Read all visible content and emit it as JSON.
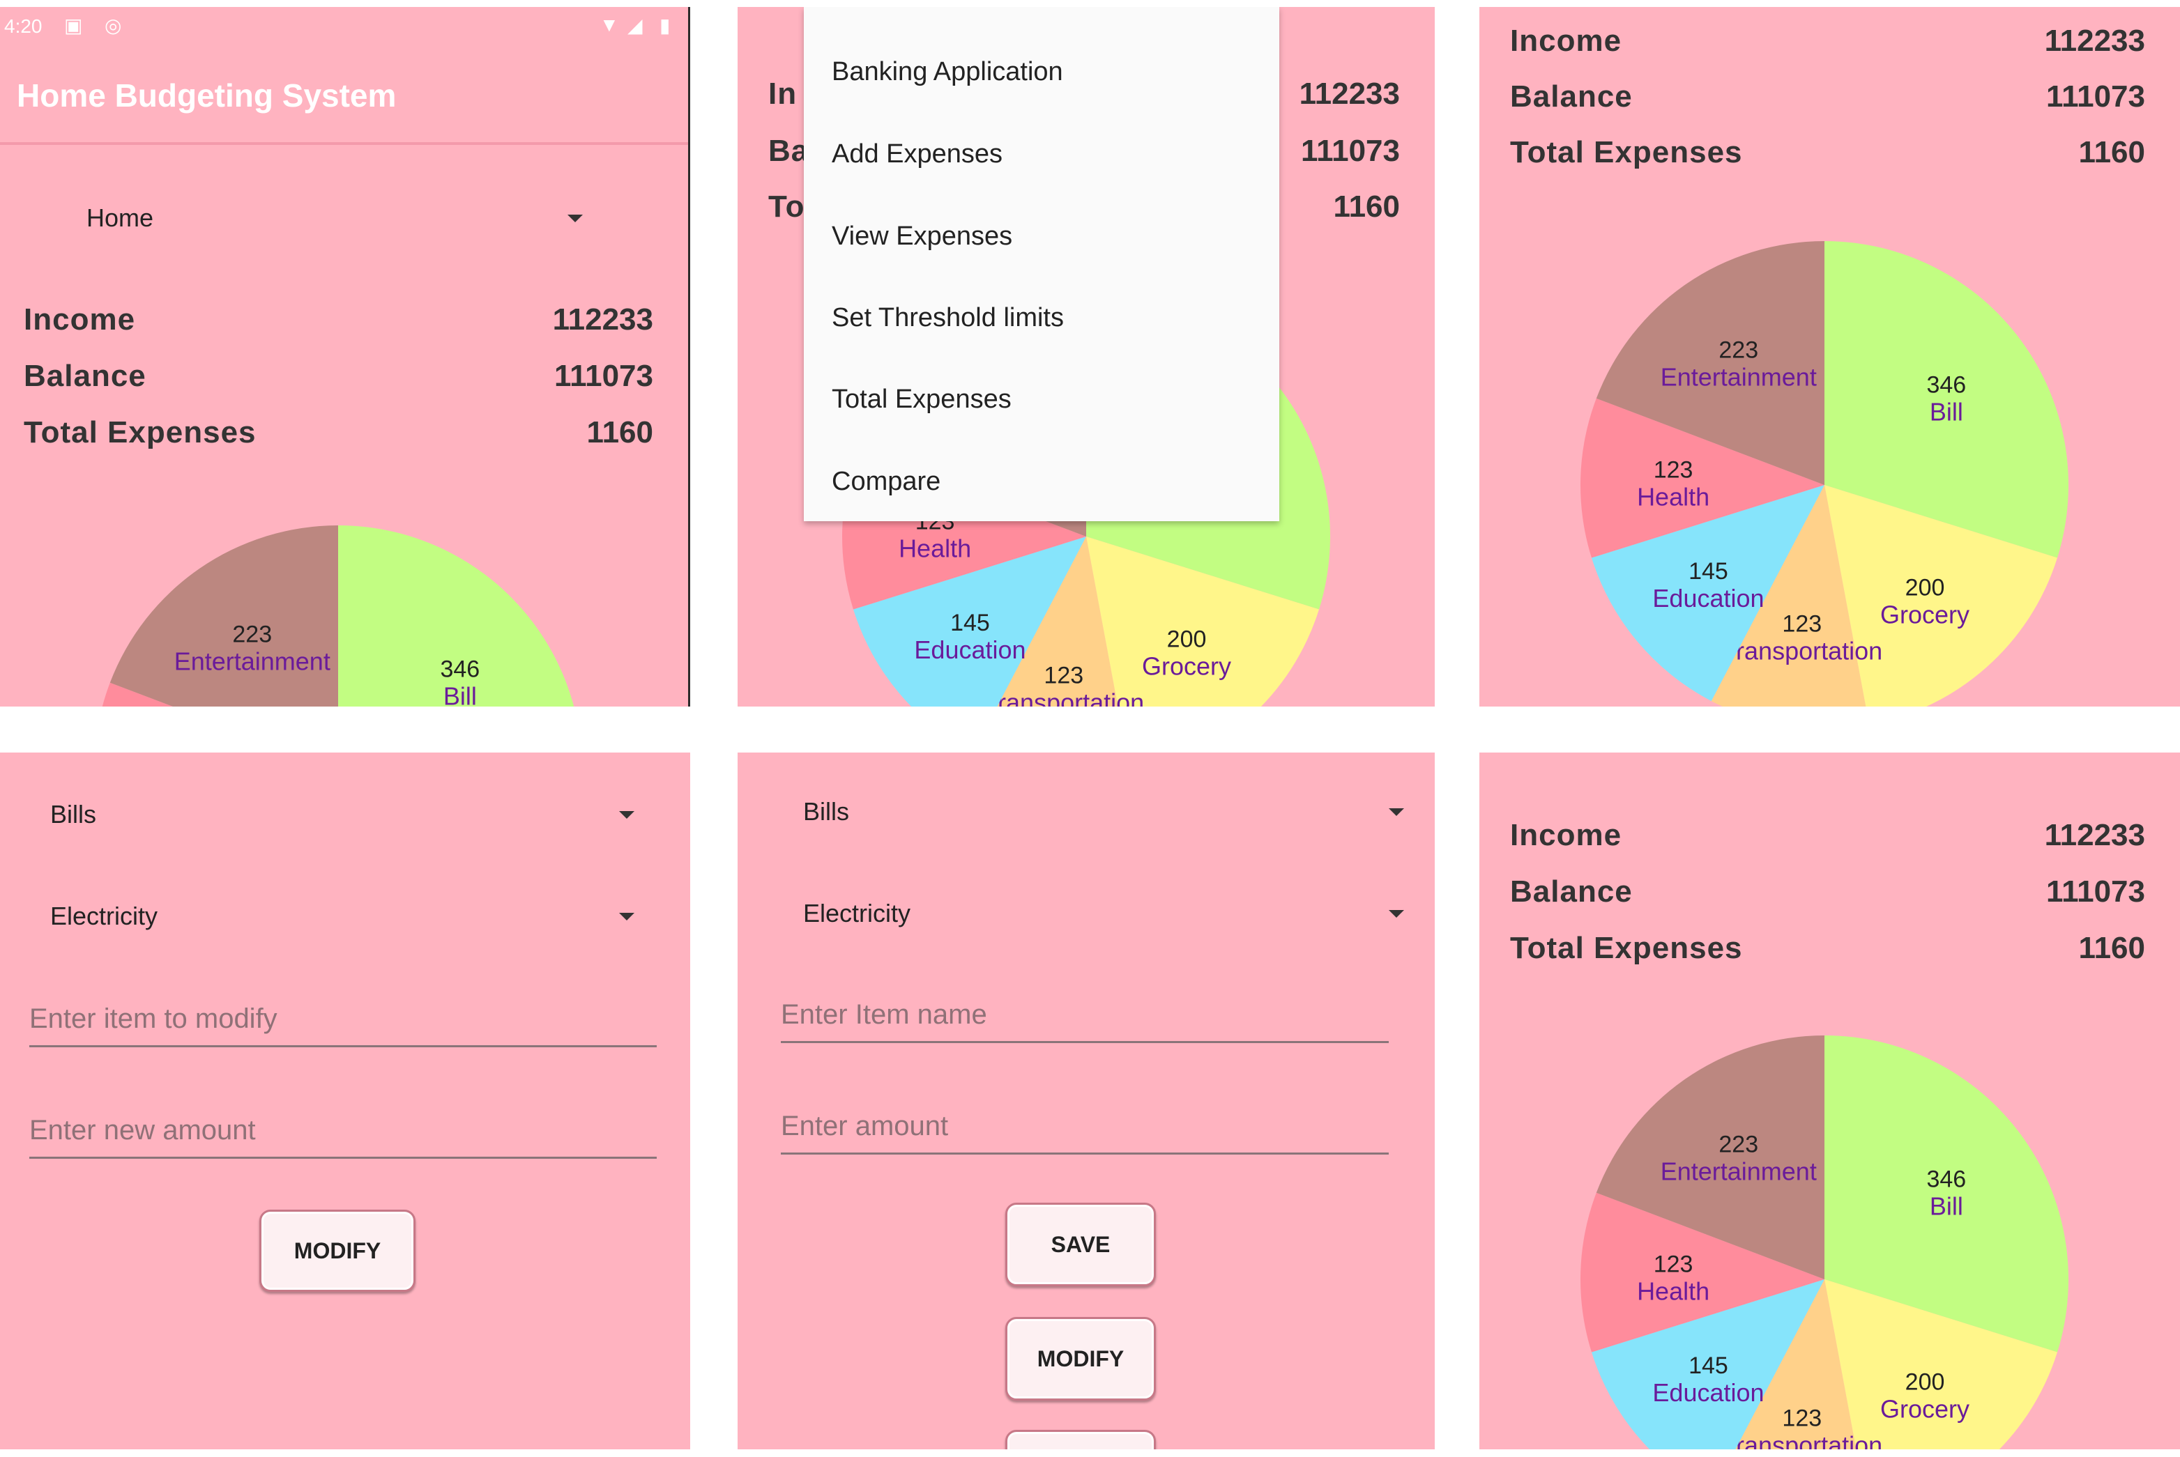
{
  "status_bar": {
    "time": "4:20"
  },
  "app_title": "Home Budgeting System",
  "category_spinner": "Home",
  "stats": {
    "income_label": "Income",
    "income_value": "112233",
    "balance_label": "Balance",
    "balance_value": "111073",
    "total_label": "Total Expenses",
    "total_value": "1160"
  },
  "menu": {
    "items": [
      "Banking Application",
      "Add Expenses",
      "View Expenses",
      "Set Threshold limits",
      "Total Expenses",
      "Compare"
    ]
  },
  "partial_labels": {
    "in": "In",
    "ba": "Ba",
    "to": "To"
  },
  "chart_data": {
    "type": "pie",
    "slices": [
      {
        "label": "Bill",
        "value": 346,
        "color": "#c2fd82"
      },
      {
        "label": "Grocery",
        "value": 200,
        "color": "#fff68a"
      },
      {
        "label": "Transportation",
        "value": 123,
        "color": "#ffd18a"
      },
      {
        "label": "Education",
        "value": 145,
        "color": "#86e4fb"
      },
      {
        "label": "Health",
        "value": 123,
        "color": "#ff8c9c"
      },
      {
        "label": "Entertainment",
        "value": 223,
        "color": "#bc8780"
      }
    ],
    "label_color": "#6a1b9a",
    "value_color": "#222222"
  },
  "modify_form": {
    "category": "Bills",
    "subcategory": "Electricity",
    "item_placeholder": "Enter item to modify",
    "amount_placeholder": "Enter new amount",
    "modify_button": "MODIFY"
  },
  "add_form": {
    "category": "Bills",
    "subcategory": "Electricity",
    "item_placeholder": "Enter Item name",
    "amount_placeholder": "Enter amount",
    "save_button": "SAVE",
    "modify_button": "MODIFY"
  }
}
